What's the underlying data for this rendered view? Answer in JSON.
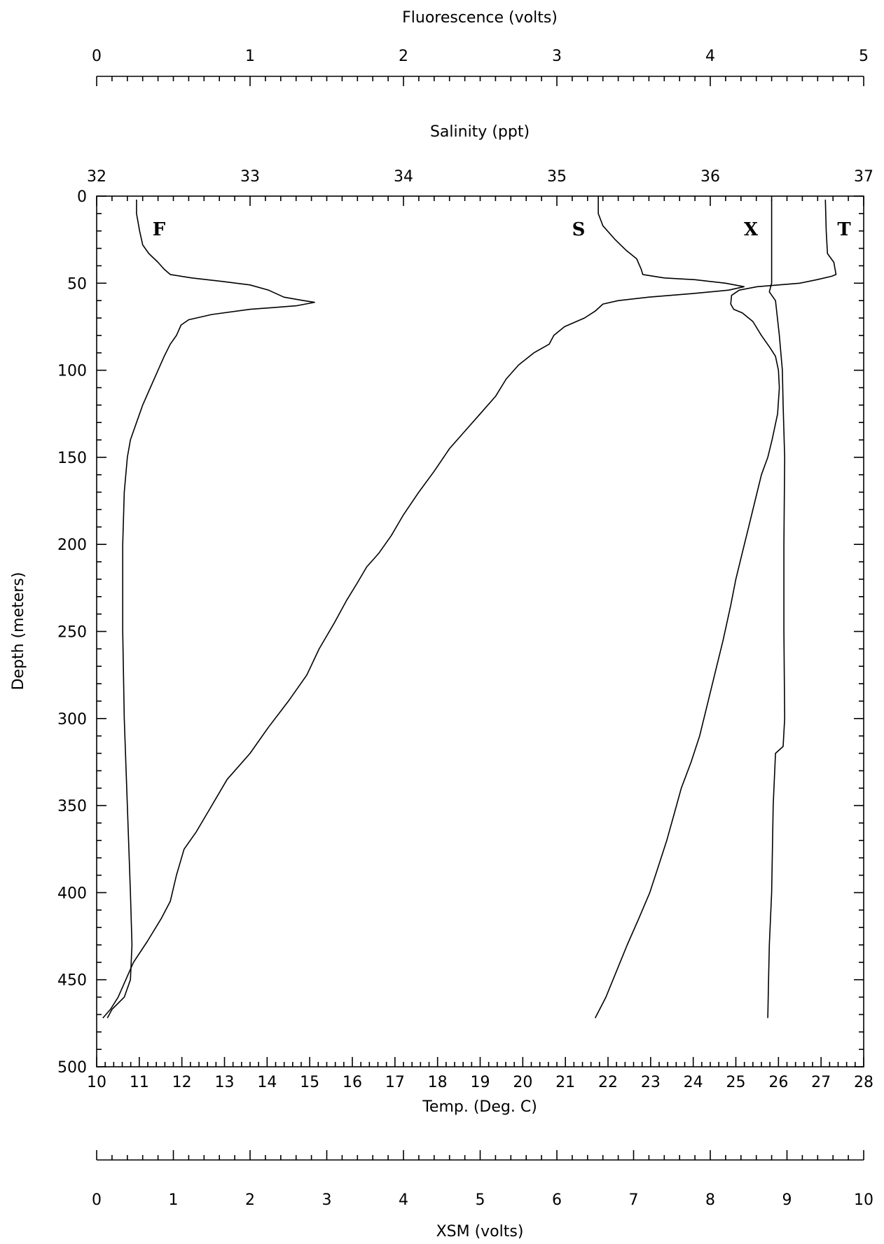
{
  "chart_data": {
    "type": "line",
    "axes": {
      "fluorescence": {
        "label": "Fluorescence (volts)",
        "range": [
          0,
          5
        ],
        "ticks": [
          "0",
          "1",
          "2",
          "3",
          "4",
          "5"
        ]
      },
      "salinity": {
        "label": "Salinity (ppt)",
        "range": [
          32,
          37
        ],
        "ticks": [
          "32",
          "33",
          "34",
          "35",
          "36",
          "37"
        ]
      },
      "temperature": {
        "label": "Temp. (Deg. C)",
        "range": [
          10,
          28
        ],
        "ticks": [
          "10",
          "11",
          "12",
          "13",
          "14",
          "15",
          "16",
          "17",
          "18",
          "19",
          "20",
          "21",
          "22",
          "23",
          "24",
          "25",
          "26",
          "27",
          "28"
        ]
      },
      "xsm": {
        "label": "XSM (volts)",
        "range": [
          0,
          10
        ],
        "ticks": [
          "0",
          "1",
          "2",
          "3",
          "4",
          "5",
          "6",
          "7",
          "8",
          "9",
          "10"
        ]
      },
      "depth": {
        "label": "Depth (meters)",
        "range": [
          0,
          500
        ],
        "inverted": true,
        "ticks": [
          "0",
          "50",
          "100",
          "150",
          "200",
          "250",
          "300",
          "350",
          "400",
          "450",
          "500"
        ]
      }
    },
    "series": [
      {
        "name": "F",
        "axis": "fluorescence",
        "points": [
          [
            0.26,
            2
          ],
          [
            0.26,
            10
          ],
          [
            0.28,
            20
          ],
          [
            0.3,
            28
          ],
          [
            0.34,
            33
          ],
          [
            0.4,
            38
          ],
          [
            0.44,
            42
          ],
          [
            0.48,
            45
          ],
          [
            0.62,
            47
          ],
          [
            0.82,
            49
          ],
          [
            1.0,
            51
          ],
          [
            1.12,
            54
          ],
          [
            1.22,
            58
          ],
          [
            1.35,
            60
          ],
          [
            1.42,
            61
          ],
          [
            1.3,
            63
          ],
          [
            1.0,
            65
          ],
          [
            0.75,
            68
          ],
          [
            0.6,
            71
          ],
          [
            0.55,
            74
          ],
          [
            0.52,
            80
          ],
          [
            0.48,
            85
          ],
          [
            0.44,
            92
          ],
          [
            0.4,
            100
          ],
          [
            0.35,
            110
          ],
          [
            0.3,
            120
          ],
          [
            0.26,
            130
          ],
          [
            0.22,
            140
          ],
          [
            0.2,
            150
          ],
          [
            0.18,
            170
          ],
          [
            0.17,
            200
          ],
          [
            0.17,
            250
          ],
          [
            0.18,
            300
          ],
          [
            0.2,
            350
          ],
          [
            0.22,
            400
          ],
          [
            0.23,
            430
          ],
          [
            0.22,
            450
          ],
          [
            0.18,
            460
          ],
          [
            0.1,
            467
          ],
          [
            0.07,
            472
          ]
        ]
      },
      {
        "name": "S",
        "axis": "salinity",
        "points": [
          [
            35.27,
            0
          ],
          [
            35.27,
            10
          ],
          [
            35.3,
            17
          ],
          [
            35.38,
            25
          ],
          [
            35.45,
            31
          ],
          [
            35.52,
            36
          ],
          [
            35.55,
            42
          ],
          [
            35.56,
            45
          ],
          [
            35.7,
            47
          ],
          [
            35.9,
            48
          ],
          [
            36.1,
            50
          ],
          [
            36.22,
            52
          ],
          [
            36.12,
            54
          ],
          [
            35.88,
            56
          ],
          [
            35.6,
            58
          ],
          [
            35.4,
            60
          ],
          [
            35.3,
            62
          ],
          [
            35.25,
            66
          ],
          [
            35.18,
            70
          ],
          [
            35.05,
            75
          ],
          [
            34.98,
            80
          ],
          [
            34.95,
            85
          ],
          [
            34.85,
            90
          ],
          [
            34.75,
            97
          ],
          [
            34.67,
            105
          ],
          [
            34.6,
            115
          ],
          [
            34.5,
            125
          ],
          [
            34.4,
            135
          ],
          [
            34.3,
            145
          ],
          [
            34.2,
            158
          ],
          [
            34.1,
            170
          ],
          [
            34.0,
            183
          ],
          [
            33.92,
            195
          ],
          [
            33.84,
            205
          ],
          [
            33.76,
            213
          ],
          [
            33.7,
            222
          ],
          [
            33.63,
            232
          ],
          [
            33.55,
            245
          ],
          [
            33.45,
            260
          ],
          [
            33.37,
            275
          ],
          [
            33.25,
            290
          ],
          [
            33.12,
            305
          ],
          [
            33.0,
            320
          ],
          [
            32.85,
            335
          ],
          [
            32.75,
            350
          ],
          [
            32.65,
            365
          ],
          [
            32.57,
            375
          ],
          [
            32.52,
            390
          ],
          [
            32.48,
            405
          ],
          [
            32.42,
            415
          ],
          [
            32.33,
            428
          ],
          [
            32.24,
            440
          ],
          [
            32.18,
            452
          ],
          [
            32.14,
            460
          ],
          [
            32.09,
            467
          ],
          [
            32.04,
            472
          ]
        ]
      },
      {
        "name": "X",
        "axis": "xsm",
        "points": [
          [
            8.8,
            2
          ],
          [
            8.8,
            50
          ],
          [
            8.77,
            55
          ],
          [
            8.85,
            60
          ],
          [
            8.9,
            80
          ],
          [
            8.94,
            100
          ],
          [
            8.95,
            120
          ],
          [
            8.97,
            150
          ],
          [
            8.96,
            200
          ],
          [
            8.96,
            250
          ],
          [
            8.97,
            300
          ],
          [
            8.95,
            316
          ],
          [
            8.85,
            320
          ],
          [
            8.82,
            350
          ],
          [
            8.8,
            400
          ],
          [
            8.77,
            430
          ],
          [
            8.76,
            450
          ],
          [
            8.75,
            472
          ]
        ]
      },
      {
        "name": "T",
        "axis": "temperature",
        "points": [
          [
            27.1,
            2
          ],
          [
            27.12,
            20
          ],
          [
            27.15,
            33
          ],
          [
            27.3,
            38
          ],
          [
            27.35,
            45
          ],
          [
            27.25,
            46
          ],
          [
            26.9,
            48
          ],
          [
            26.5,
            50
          ],
          [
            26.0,
            51
          ],
          [
            25.5,
            52
          ],
          [
            25.08,
            54
          ],
          [
            24.9,
            57
          ],
          [
            24.88,
            62
          ],
          [
            24.95,
            65
          ],
          [
            25.15,
            67
          ],
          [
            25.4,
            72
          ],
          [
            25.6,
            80
          ],
          [
            25.8,
            87
          ],
          [
            25.93,
            92
          ],
          [
            26.0,
            100
          ],
          [
            26.02,
            110
          ],
          [
            25.98,
            125
          ],
          [
            25.85,
            140
          ],
          [
            25.75,
            150
          ],
          [
            25.6,
            160
          ],
          [
            25.45,
            175
          ],
          [
            25.3,
            190
          ],
          [
            25.15,
            205
          ],
          [
            25.0,
            220
          ],
          [
            24.88,
            235
          ],
          [
            24.7,
            255
          ],
          [
            24.5,
            275
          ],
          [
            24.35,
            290
          ],
          [
            24.15,
            310
          ],
          [
            23.95,
            325
          ],
          [
            23.72,
            340
          ],
          [
            23.55,
            355
          ],
          [
            23.38,
            370
          ],
          [
            23.18,
            385
          ],
          [
            22.98,
            400
          ],
          [
            22.72,
            415
          ],
          [
            22.45,
            430
          ],
          [
            22.2,
            445
          ],
          [
            21.95,
            460
          ],
          [
            21.7,
            472
          ]
        ]
      }
    ]
  }
}
